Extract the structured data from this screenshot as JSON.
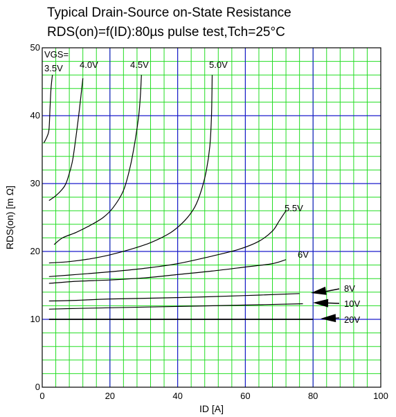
{
  "chart_data": {
    "type": "line",
    "title": "Typical Drain-Source on-State Resistance",
    "subtitle": "RDS(on)=f(ID):80µs pulse test,Tch=25°C",
    "xlabel": "ID [A]",
    "ylabel": "RDS(on) [m Ω]",
    "xlim": [
      0,
      100
    ],
    "ylim": [
      0,
      50
    ],
    "x_ticks": [
      0,
      20,
      40,
      60,
      80,
      100
    ],
    "y_ticks": [
      0,
      10,
      20,
      30,
      40,
      50
    ],
    "grid": true,
    "legend_title": "VGS=",
    "colors": {
      "minor_grid": "#22dd22",
      "major_grid": "#1a1acc",
      "curve": "#000000",
      "background": "#ffffff"
    },
    "series": [
      {
        "name": "3.5V",
        "points": [
          [
            0.5,
            36
          ],
          [
            1.5,
            37
          ],
          [
            2,
            38
          ],
          [
            2.3,
            41
          ],
          [
            2.6,
            44
          ],
          [
            3,
            46
          ]
        ]
      },
      {
        "name": "4.0V",
        "points": [
          [
            2,
            27.5
          ],
          [
            4,
            28.2
          ],
          [
            6,
            29.2
          ],
          [
            7,
            30
          ],
          [
            8,
            31.5
          ],
          [
            9,
            33.5
          ],
          [
            10,
            37
          ],
          [
            11,
            41
          ],
          [
            12,
            45.5
          ]
        ]
      },
      {
        "name": "4.5V",
        "points": [
          [
            3.5,
            21
          ],
          [
            6,
            22
          ],
          [
            10,
            22.8
          ],
          [
            14,
            23.8
          ],
          [
            18,
            25
          ],
          [
            21,
            26.5
          ],
          [
            24,
            29
          ],
          [
            26,
            32.5
          ],
          [
            27.5,
            36.5
          ],
          [
            28.5,
            40
          ],
          [
            29,
            43
          ],
          [
            29.3,
            46
          ]
        ]
      },
      {
        "name": "5.0V",
        "points": [
          [
            2,
            18.3
          ],
          [
            8,
            18.5
          ],
          [
            14,
            18.9
          ],
          [
            20,
            19.5
          ],
          [
            26,
            20.3
          ],
          [
            32,
            21.3
          ],
          [
            38,
            22.8
          ],
          [
            42,
            24.5
          ],
          [
            45,
            26.5
          ],
          [
            47,
            29
          ],
          [
            48.5,
            32
          ],
          [
            49.5,
            35.5
          ],
          [
            50,
            40
          ],
          [
            50.2,
            46
          ]
        ]
      },
      {
        "name": "5.5V",
        "points": [
          [
            2,
            16.3
          ],
          [
            10,
            16.6
          ],
          [
            20,
            17
          ],
          [
            30,
            17.5
          ],
          [
            40,
            18.2
          ],
          [
            50,
            19.3
          ],
          [
            58,
            20.3
          ],
          [
            64,
            21.5
          ],
          [
            68,
            23
          ],
          [
            70,
            24.5
          ],
          [
            72,
            26
          ]
        ]
      },
      {
        "name": "6V",
        "points": [
          [
            2,
            15.3
          ],
          [
            10,
            15.6
          ],
          [
            20,
            15.8
          ],
          [
            30,
            16.1
          ],
          [
            40,
            16.6
          ],
          [
            50,
            17.1
          ],
          [
            60,
            17.7
          ],
          [
            68,
            18.2
          ],
          [
            72,
            18.8
          ]
        ]
      },
      {
        "name": "8V",
        "points": [
          [
            2,
            12.7
          ],
          [
            10,
            12.8
          ],
          [
            20,
            13
          ],
          [
            40,
            13.2
          ],
          [
            60,
            13.5
          ],
          [
            76,
            13.8
          ]
        ]
      },
      {
        "name": "10V",
        "points": [
          [
            2,
            11.5
          ],
          [
            10,
            11.6
          ],
          [
            20,
            11.7
          ],
          [
            40,
            11.9
          ],
          [
            60,
            12.1
          ],
          [
            77,
            12.3
          ]
        ]
      },
      {
        "name": "20V",
        "points": [
          [
            2,
            10
          ],
          [
            20,
            10
          ],
          [
            40,
            10
          ],
          [
            60,
            10
          ],
          [
            80,
            10
          ]
        ]
      }
    ]
  }
}
